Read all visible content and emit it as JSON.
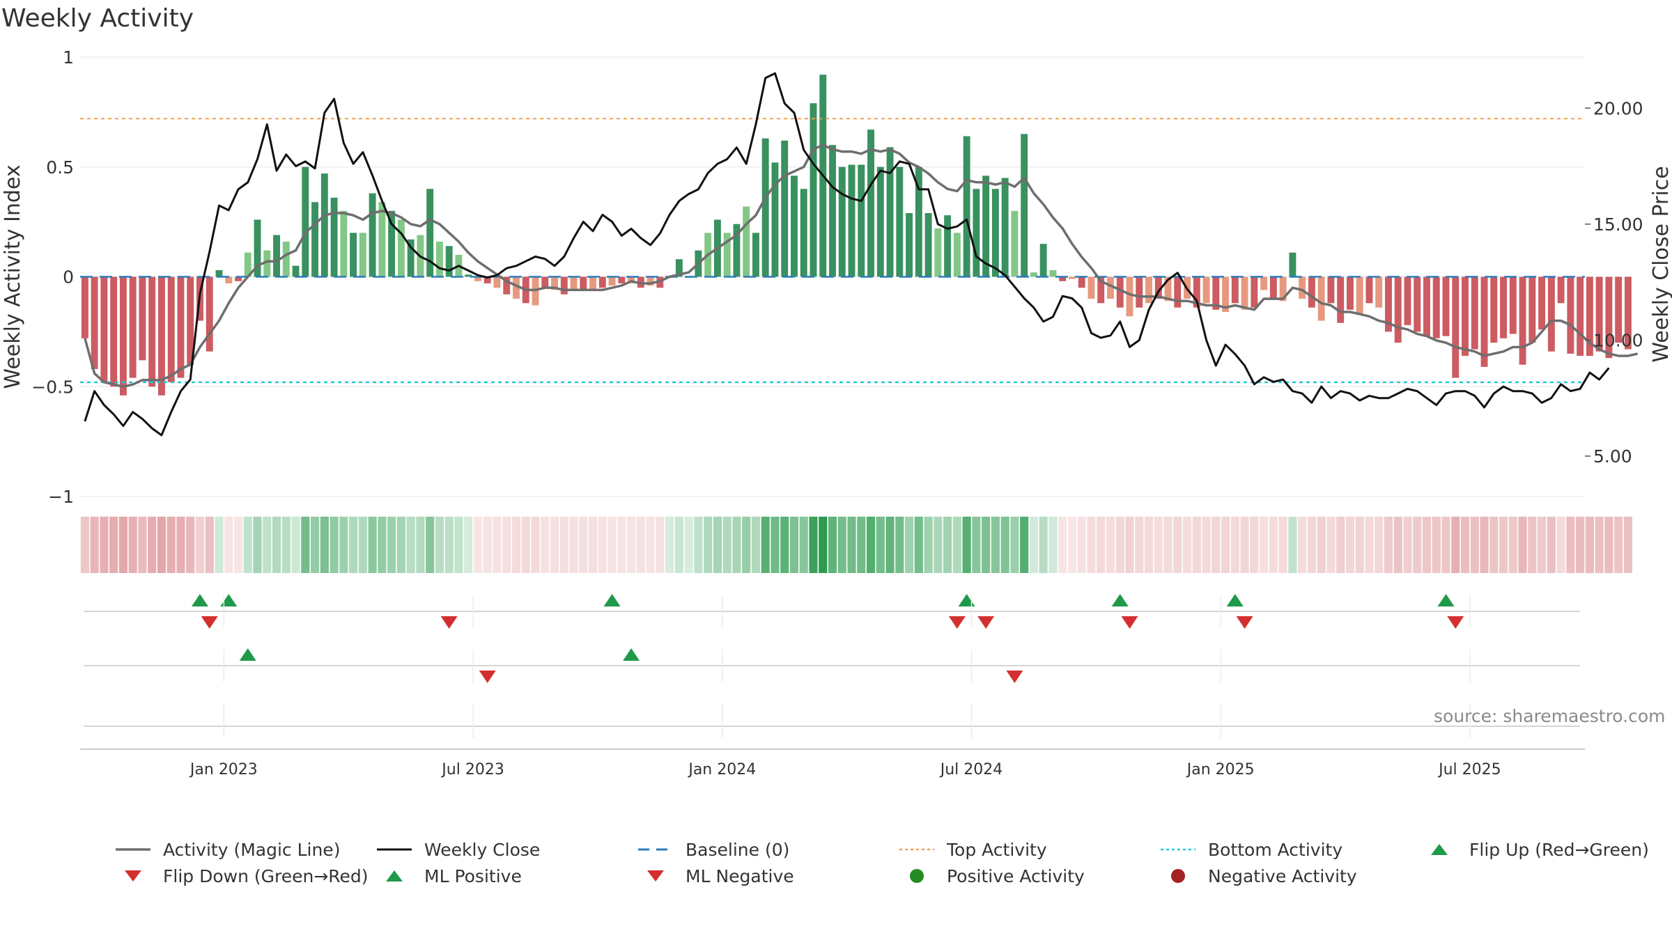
{
  "title": "Weekly Activity",
  "source": "source: sharemaestro.com",
  "colors": {
    "pos_dark": "#2e8b57",
    "pos_light": "#7bc47f",
    "neg_dark": "#c9525a",
    "neg_light": "#e59478",
    "close": "#111111",
    "magic": "#6e6e6e",
    "baseline": "#2b7bba",
    "top": "#f0a050",
    "bottom": "#22c8d8",
    "up": "#1f9a4a",
    "down": "#d32f2f"
  },
  "chart_data": {
    "type": "bar",
    "title": "Weekly Activity",
    "ylabel_left": "Weekly Activity Index",
    "ylabel_right": "Weekly Close Price",
    "ylim_left": [
      -1,
      1
    ],
    "ylim_right": [
      3.26,
      22.2
    ],
    "yticks_left": [
      {
        "v": 1,
        "label": "1"
      },
      {
        "v": 0.5,
        "label": "0.5"
      },
      {
        "v": 0,
        "label": "0"
      },
      {
        "v": -0.5,
        "label": "−0.5"
      },
      {
        "v": -1,
        "label": "−1"
      }
    ],
    "yticks_right": [
      {
        "v": 20,
        "label": "20.00"
      },
      {
        "v": 15,
        "label": "15.00"
      },
      {
        "v": 10,
        "label": "10.00"
      },
      {
        "v": 5,
        "label": "5.00"
      }
    ],
    "x_start": "2022-09-26",
    "weeks": 157,
    "xticks": [
      {
        "week": 15,
        "label": "Jan 2023"
      },
      {
        "week": 41,
        "label": "Jul 2023"
      },
      {
        "week": 67,
        "label": "Jan 2024"
      },
      {
        "week": 93,
        "label": "Jul 2024"
      },
      {
        "week": 119,
        "label": "Jan 2025"
      },
      {
        "week": 145,
        "label": "Jul 2025"
      }
    ],
    "top_activity": 0.72,
    "bottom_activity": -0.48,
    "baseline": 0,
    "activity": [
      -0.28,
      -0.42,
      -0.48,
      -0.5,
      -0.54,
      -0.46,
      -0.38,
      -0.5,
      -0.54,
      -0.48,
      -0.46,
      -0.4,
      -0.2,
      -0.34,
      0.03,
      -0.03,
      -0.02,
      0.11,
      0.26,
      0.12,
      0.19,
      0.16,
      0.05,
      0.5,
      0.34,
      0.47,
      0.36,
      0.3,
      0.2,
      0.2,
      0.38,
      0.34,
      0.3,
      0.26,
      0.17,
      0.19,
      0.4,
      0.16,
      0.14,
      0.1,
      0.01,
      -0.02,
      -0.03,
      -0.05,
      -0.08,
      -0.1,
      -0.12,
      -0.13,
      -0.05,
      -0.06,
      -0.08,
      -0.06,
      -0.06,
      -0.06,
      -0.05,
      -0.04,
      -0.03,
      -0.03,
      -0.05,
      -0.04,
      -0.05,
      0.0,
      0.08,
      0.0,
      0.12,
      0.2,
      0.26,
      0.2,
      0.24,
      0.32,
      0.2,
      0.63,
      0.52,
      0.62,
      0.46,
      0.4,
      0.79,
      0.92,
      0.6,
      0.5,
      0.51,
      0.51,
      0.67,
      0.5,
      0.59,
      0.5,
      0.29,
      0.5,
      0.29,
      0.22,
      0.28,
      0.2,
      0.64,
      0.4,
      0.46,
      0.4,
      0.45,
      0.3,
      0.65,
      0.02,
      0.15,
      0.03,
      -0.02,
      -0.01,
      -0.05,
      -0.1,
      -0.12,
      -0.1,
      -0.14,
      -0.18,
      -0.14,
      -0.12,
      -0.1,
      -0.11,
      -0.14,
      -0.1,
      -0.14,
      -0.12,
      -0.15,
      -0.16,
      -0.12,
      -0.15,
      -0.14,
      -0.06,
      -0.1,
      -0.11,
      0.11,
      -0.1,
      -0.14,
      -0.2,
      -0.12,
      -0.21,
      -0.15,
      -0.17,
      -0.12,
      -0.14,
      -0.25,
      -0.3,
      -0.22,
      -0.25,
      -0.27,
      -0.28,
      -0.27,
      -0.46,
      -0.36,
      -0.33,
      -0.41,
      -0.3,
      -0.28,
      -0.26,
      -0.4,
      -0.3,
      -0.24,
      -0.34,
      -0.12,
      -0.35,
      -0.36,
      -0.36,
      -0.34,
      -0.37,
      -0.3,
      -0.33
    ],
    "magic_line": [
      -0.28,
      -0.44,
      -0.48,
      -0.49,
      -0.5,
      -0.49,
      -0.47,
      -0.47,
      -0.47,
      -0.45,
      -0.42,
      -0.4,
      -0.32,
      -0.26,
      -0.2,
      -0.12,
      -0.05,
      0.0,
      0.05,
      0.07,
      0.07,
      0.1,
      0.12,
      0.2,
      0.24,
      0.28,
      0.29,
      0.29,
      0.28,
      0.26,
      0.29,
      0.3,
      0.29,
      0.27,
      0.24,
      0.23,
      0.26,
      0.24,
      0.2,
      0.16,
      0.11,
      0.07,
      0.04,
      0.01,
      -0.02,
      -0.04,
      -0.06,
      -0.06,
      -0.05,
      -0.05,
      -0.06,
      -0.06,
      -0.06,
      -0.06,
      -0.06,
      -0.05,
      -0.04,
      -0.02,
      -0.03,
      -0.03,
      -0.02,
      0.0,
      0.01,
      0.02,
      0.06,
      0.1,
      0.13,
      0.16,
      0.19,
      0.24,
      0.28,
      0.36,
      0.42,
      0.46,
      0.48,
      0.5,
      0.58,
      0.6,
      0.58,
      0.57,
      0.57,
      0.56,
      0.58,
      0.57,
      0.58,
      0.56,
      0.52,
      0.5,
      0.47,
      0.43,
      0.4,
      0.39,
      0.44,
      0.43,
      0.43,
      0.42,
      0.43,
      0.41,
      0.45,
      0.38,
      0.33,
      0.27,
      0.22,
      0.15,
      0.09,
      0.04,
      -0.02,
      -0.04,
      -0.06,
      -0.08,
      -0.09,
      -0.09,
      -0.09,
      -0.1,
      -0.11,
      -0.11,
      -0.12,
      -0.13,
      -0.13,
      -0.14,
      -0.13,
      -0.14,
      -0.15,
      -0.1,
      -0.1,
      -0.1,
      -0.05,
      -0.06,
      -0.09,
      -0.12,
      -0.13,
      -0.16,
      -0.16,
      -0.17,
      -0.18,
      -0.2,
      -0.21,
      -0.23,
      -0.24,
      -0.26,
      -0.27,
      -0.29,
      -0.3,
      -0.32,
      -0.33,
      -0.34,
      -0.36,
      -0.35,
      -0.34,
      -0.32,
      -0.32,
      -0.3,
      -0.25,
      -0.2,
      -0.2,
      -0.22,
      -0.26,
      -0.3,
      -0.33,
      -0.35,
      -0.36,
      -0.36,
      -0.35
    ],
    "weekly_close": [
      6.5,
      7.8,
      7.2,
      6.8,
      6.3,
      6.9,
      6.6,
      6.2,
      5.9,
      6.9,
      7.8,
      8.3,
      12.0,
      13.8,
      15.8,
      15.6,
      16.5,
      16.8,
      17.8,
      19.3,
      17.3,
      18.0,
      17.5,
      17.7,
      17.4,
      19.8,
      20.4,
      18.5,
      17.6,
      18.1,
      17.1,
      16.0,
      15.0,
      14.6,
      14.0,
      13.6,
      13.4,
      13.1,
      13.0,
      13.2,
      13.0,
      12.8,
      12.7,
      12.8,
      13.1,
      13.2,
      13.4,
      13.6,
      13.5,
      13.2,
      13.6,
      14.4,
      15.1,
      14.7,
      15.4,
      15.1,
      14.5,
      14.8,
      14.4,
      14.1,
      14.6,
      15.4,
      16.0,
      16.3,
      16.5,
      17.2,
      17.6,
      17.8,
      18.3,
      17.6,
      19.3,
      21.3,
      21.5,
      20.2,
      19.8,
      18.2,
      17.6,
      17.1,
      16.6,
      16.3,
      16.1,
      16.0,
      16.7,
      17.3,
      17.2,
      17.7,
      17.6,
      16.5,
      16.5,
      15.0,
      14.8,
      14.9,
      15.2,
      13.6,
      13.3,
      13.1,
      12.8,
      12.3,
      11.8,
      11.4,
      10.8,
      11.0,
      11.9,
      11.8,
      11.4,
      10.3,
      10.1,
      10.2,
      10.8,
      9.7,
      10.0,
      11.3,
      12.1,
      12.6,
      12.9,
      12.2,
      11.7,
      10.0,
      8.9,
      9.8,
      9.4,
      8.9,
      8.1,
      8.4,
      8.2,
      8.3,
      7.8,
      7.7,
      7.3,
      8.0,
      7.5,
      7.8,
      7.7,
      7.4,
      7.6,
      7.5,
      7.5,
      7.7,
      7.9,
      7.8,
      7.5,
      7.2,
      7.7,
      7.8,
      7.8,
      7.6,
      7.1,
      7.7,
      8.0,
      7.8,
      7.8,
      7.7,
      7.3,
      7.5,
      8.1,
      7.8,
      7.9,
      8.6,
      8.3,
      8.8
    ]
  },
  "heat_strip": {
    "levels": [
      -0.28,
      -0.42,
      -0.48,
      -0.5,
      -0.54,
      -0.46,
      -0.38,
      -0.5,
      -0.54,
      -0.48,
      -0.46,
      -0.4,
      -0.2,
      -0.34,
      0.03,
      -0.03,
      -0.02,
      0.11,
      0.26,
      0.12,
      0.19,
      0.16,
      0.05,
      0.5,
      0.34,
      0.47,
      0.36,
      0.3,
      0.2,
      0.2,
      0.38,
      0.34,
      0.3,
      0.26,
      0.17,
      0.19,
      0.4,
      0.16,
      0.14,
      0.1,
      0.01,
      -0.02,
      -0.03,
      -0.05,
      -0.08,
      -0.1,
      -0.12,
      -0.13,
      -0.05,
      -0.06,
      -0.08,
      -0.06,
      -0.06,
      -0.06,
      -0.05,
      -0.04,
      -0.03,
      -0.03,
      -0.05,
      -0.04,
      -0.05,
      0.0,
      0.08,
      0.0,
      0.12,
      0.2,
      0.26,
      0.2,
      0.24,
      0.32,
      0.2,
      0.63,
      0.52,
      0.62,
      0.46,
      0.4,
      0.79,
      0.92,
      0.6,
      0.5,
      0.51,
      0.51,
      0.67,
      0.5,
      0.59,
      0.5,
      0.29,
      0.5,
      0.29,
      0.22,
      0.28,
      0.2,
      0.64,
      0.4,
      0.46,
      0.4,
      0.45,
      0.3,
      0.65,
      0.02,
      0.15,
      0.03,
      -0.02,
      -0.01,
      -0.05,
      -0.1,
      -0.12,
      -0.1,
      -0.14,
      -0.18,
      -0.14,
      -0.12,
      -0.1,
      -0.11,
      -0.14,
      -0.1,
      -0.14,
      -0.12,
      -0.15,
      -0.16,
      -0.12,
      -0.15,
      -0.14,
      -0.06,
      -0.1,
      -0.11,
      0.11,
      -0.1,
      -0.14,
      -0.2,
      -0.12,
      -0.21,
      -0.15,
      -0.17,
      -0.12,
      -0.14,
      -0.25,
      -0.3,
      -0.22,
      -0.25,
      -0.27,
      -0.28,
      -0.27,
      -0.46,
      -0.36,
      -0.33,
      -0.41,
      -0.3,
      -0.28,
      -0.26,
      -0.4,
      -0.3,
      -0.24,
      -0.34,
      -0.12,
      -0.35,
      -0.36,
      -0.36,
      -0.34,
      -0.37,
      -0.3,
      -0.33
    ]
  },
  "flip_markers": {
    "row1_up": [
      12,
      15,
      55,
      92,
      108,
      120,
      142
    ],
    "row1_down": [
      13,
      38,
      91,
      94,
      109,
      121,
      143
    ],
    "row2_up": [
      17,
      57
    ],
    "row2_down": [
      42,
      97
    ]
  },
  "legend": [
    {
      "key": "magic",
      "label": "Activity (Magic Line)"
    },
    {
      "key": "close",
      "label": "Weekly Close"
    },
    {
      "key": "baseline",
      "label": "Baseline (0)"
    },
    {
      "key": "top",
      "label": "Top Activity"
    },
    {
      "key": "bottom",
      "label": "Bottom Activity"
    },
    {
      "key": "flip_up",
      "label": "Flip Up (Red→Green)"
    },
    {
      "key": "flip_down",
      "label": "Flip Down (Green→Red)"
    },
    {
      "key": "ml_pos",
      "label": "ML Positive"
    },
    {
      "key": "ml_neg",
      "label": "ML Negative"
    },
    {
      "key": "pos_act",
      "label": "Positive Activity"
    },
    {
      "key": "neg_act",
      "label": "Negative Activity"
    }
  ]
}
